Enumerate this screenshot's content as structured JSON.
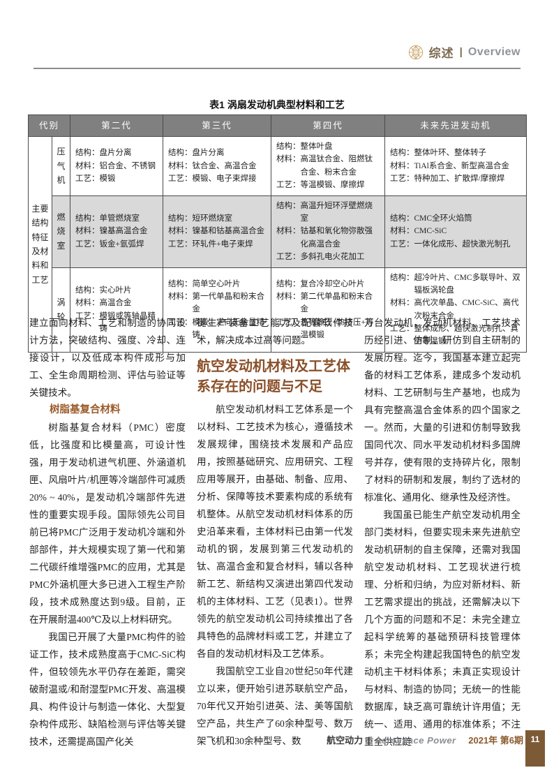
{
  "header": {
    "title_cn": "综述",
    "separator": "|",
    "title_en": "Overview",
    "emblem_color": "#c9a063"
  },
  "table": {
    "caption": "表1  涡扇发动机典型材料和工艺",
    "columns": [
      "代别",
      "第二代",
      "第三代",
      "第四代",
      "未来先进发动机"
    ],
    "group_label": "主要结构特征及材料和工艺",
    "rows": [
      {
        "label": "压气机",
        "cells": [
          "结构：盘片分离\n材料：铝合金、不锈钢\n工艺：模锻",
          "结构：盘片分离\n材料：钛合金、高温合金\n工艺：模锻、电子束焊接",
          "结构：整体叶盘\n材料：高温钛合金、阻燃钛合金、粉末合金\n工艺：等温模锻、摩擦焊",
          "结构：整体叶环、整体转子\n材料：TiAl系合金、新型高温合金\n工艺：特种加工、扩散焊/摩擦焊"
        ]
      },
      {
        "label": "燃烧室",
        "cells": [
          "结构：单管燃烧室\n材料：镍基高温合金\n工艺：钣金+氩弧焊",
          "结构：短环燃烧室\n材料：镍基和钴基高温合金\n工艺：环轧件+电子束焊",
          "结构：高温升短环浮壁燃烧室\n材料：钴基和氧化物弥散强化高温合金\n工艺：多斜孔电火花加工",
          "结构：CMC全环火焰筒\n材料：CMC-SiC\n工艺：一体化成形、超快激光制孔"
        ]
      },
      {
        "label": "涡轮",
        "cells": [
          "结构：实心叶片\n材料：高温合金\n工艺：模锻或等轴晶精铸",
          "结构：简单空心叶片\n材料：第一代单晶和粉末合金\n工艺：模锻、定向无余量精铸",
          "结构：复合冷却空心叶片\n材料：第二代单晶和粉末合金\n工艺：热等静压+热挤压+等温模锻",
          "结构：超冷叶片、CMC多联导叶、双辐板涡轮盘\n材料：高代次单晶、CMC-SiC、高代次粉末合金\n工艺：整体成形、超快激光制孔、真空等温锻"
        ]
      }
    ]
  },
  "article": {
    "col1": {
      "p1": "建立面向材料、工艺和制造的协同设计方法，突破结构、强度、冷却、连接设计，以及低成本构件成形与加工、全生命周期检测、评估与验证等关键技术。",
      "h_resin": "树脂基复合材料",
      "p2": "树脂基复合材料（PMC）密度低，比强度和比模量高，可设计性强，用于发动机进气机匣、外涵道机匣、风扇叶片/机匣等冷端部件可减质20% ~ 40%，是发动机冷端部件先进性的重要实现手段。国际领先公司目前已将PMC广泛用于发动机冷端和外部部件，并大规模实现了第一代和第二代碳纤维增强PMC的应用，尤其是PMC外涵机匣大多已进入工程生产阶段，技术成熟度达到9级。目前，正在开展耐温400℃及以上材料研究。",
      "p3": "我国已开展了大量PMC构件的验证工作，技术成熟度高于CMC-SiC构件，但较领先水平仍存在差距，需突破耐温或/和耐湿型PMC开发、高温模具、构件设计与制造一体化、大型复杂构件成形、缺陷检测与评估等关键技术，还需提高国产化关"
    },
    "col2": {
      "p1": "键生产装备工艺能力及配套软件技术，解决成本过高等问题。",
      "h_section": "航空发动机材料及工艺体系存在的问题与不足",
      "p2": "航空发动机材料工艺体系是一个以材料、工艺技术为核心，遵循技术发展规律，围绕技术发展和产品应用，按照基础研究、应用研究、工程应用等展开，由基础、制备、应用、分析、保障等技术要素构成的系统有机整体。从航空发动机材料体系的历史沿革来看，主体材料已由第一代发动机的钢，发展到第三代发动机的钛、高温合金和复合材料，辅以各种新工艺、新结构又演进出第四代发动机的主体材料、工艺（见表1）。世界领先的航空发动机公司持续推出了各具特色的品牌材料或工艺，并建立了各自的发动机材料及工艺体系。",
      "p3": "我国航空工业自20世纪50年代建立以来，便开始引进苏联航空产品，70年代又开始引进英、法、美等国航空产品，共生产了60余种型号、数万架飞机和30余种型号、数"
    },
    "col3": {
      "p1": "万台发动机，发动机材料、工艺技术历经引进、仿制、研仿到自主研制的发展历程。迄今，我国基本建立起完备的材料工艺体系，建成多个发动机材料、工艺研制与生产基地，也成为具有完整高温合金体系的四个国家之一。然而，大量的引进和仿制导致我国同代次、同水平发动机材料多国牌号并存，使有限的支持碎片化，限制了材料的研制和发展，制约了选材的标准化、通用化、继承性及经济性。",
      "p2": "我国虽已能生产航空发动机用全部门类材料，但要实现未来先进航空发动机研制的自主保障，还需对我国航空发动机材料、工艺现状进行梳理、分析和归纳，为应对新材料、新工艺需求提出的挑战，还需解决以下几个方面的问题和不足：未完全建立起科学统筹的基础预研科技管理体系；未完全构建起我国特色的航空发动机主干材料体系；未真正实现设计与材料、制造的协同；无统一的性能数据库，缺乏高可靠统计许用值；无统一、适用、通用的标准体系；不注重全供应链"
    }
  },
  "footer": {
    "journal_cn": "航空动力",
    "separator": "|",
    "journal_en": "Aerospace Power",
    "issue": "2021年 第6期",
    "page_number": "11"
  },
  "colors": {
    "accent_brown": "#8a4f28",
    "table_header_bg": "#808080",
    "table_stripe_bg": "#d9d9d9",
    "page_box_brown": "#7d5a36",
    "emblem_gold": "#c9a063"
  }
}
